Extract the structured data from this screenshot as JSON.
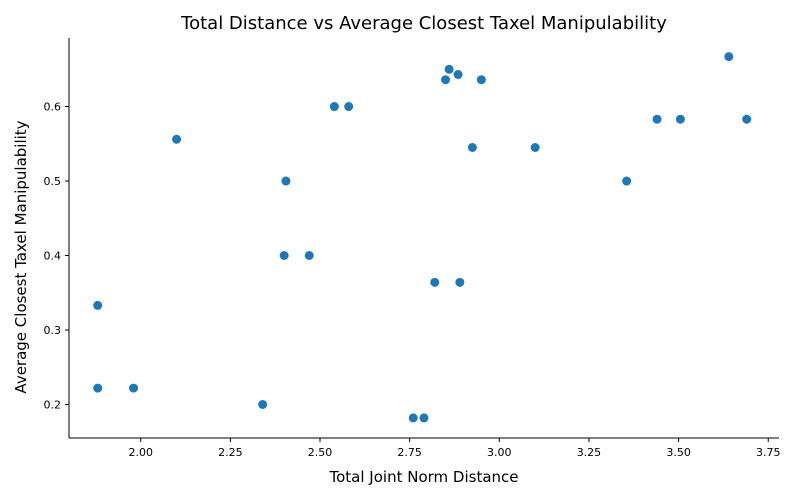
{
  "chart_data": {
    "type": "scatter",
    "title": "Total Distance vs Average Closest Taxel Manipulability",
    "xlabel": "Total Joint Norm Distance",
    "ylabel": "Average Closest Taxel Manipulability",
    "xlim": [
      1.8,
      3.78
    ],
    "ylim": [
      0.155,
      0.692
    ],
    "xticks": [
      2.0,
      2.25,
      2.5,
      2.75,
      3.0,
      3.25,
      3.5,
      3.75
    ],
    "xtick_labels": [
      "2.00",
      "2.25",
      "2.50",
      "2.75",
      "3.00",
      "3.25",
      "3.50",
      "3.75"
    ],
    "yticks": [
      0.2,
      0.3,
      0.4,
      0.5,
      0.6
    ],
    "ytick_labels": [
      "0.2",
      "0.3",
      "0.4",
      "0.5",
      "0.6"
    ],
    "grid": false,
    "marker_color": "#1f77b4",
    "series": [
      {
        "name": "points",
        "x": [
          1.88,
          1.88,
          1.98,
          2.1,
          2.34,
          2.4,
          2.405,
          2.47,
          2.54,
          2.58,
          2.76,
          2.79,
          2.82,
          2.85,
          2.86,
          2.885,
          2.89,
          2.925,
          2.95,
          3.1,
          3.355,
          3.44,
          3.505,
          3.64,
          3.69
        ],
        "y": [
          0.333,
          0.222,
          0.222,
          0.556,
          0.2,
          0.4,
          0.5,
          0.4,
          0.6,
          0.6,
          0.182,
          0.182,
          0.364,
          0.636,
          0.65,
          0.643,
          0.364,
          0.545,
          0.636,
          0.545,
          0.5,
          0.583,
          0.583,
          0.667,
          0.583
        ]
      }
    ]
  }
}
